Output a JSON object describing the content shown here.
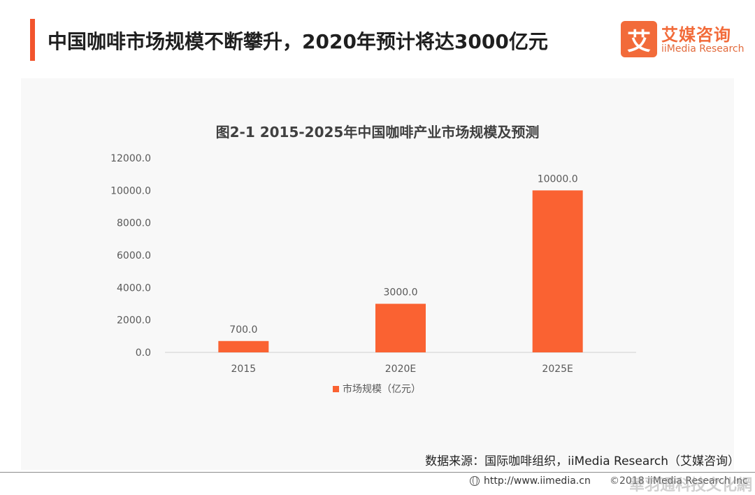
{
  "header": {
    "title": "中国咖啡市场规模不断攀升，2020年预计将达3000亿元"
  },
  "logo": {
    "mark": "艾",
    "name_cn": "艾媒咨询",
    "name_en": "iiMedia Research"
  },
  "chart_data": {
    "type": "bar",
    "title": "图2-1 2015-2025年中国咖啡产业市场规模及预测",
    "categories": [
      "2015",
      "2020E",
      "2025E"
    ],
    "series": [
      {
        "name": "市场规模（亿元）",
        "values": [
          700.0,
          3000.0,
          10000.0
        ],
        "color": "#fa6232"
      }
    ],
    "data_labels": [
      "700.0",
      "3000.0",
      "10000.0"
    ],
    "ylim": [
      0,
      12000
    ],
    "yticks": [
      0,
      2000,
      4000,
      6000,
      8000,
      10000,
      12000
    ],
    "ytick_labels": [
      "0.0",
      "2000.0",
      "4000.0",
      "6000.0",
      "8000.0",
      "10000.0",
      "12000.0"
    ],
    "grid": false,
    "legend_position": "bottom"
  },
  "source": {
    "text": "数据来源：国际咖啡组织，iiMedia Research（艾媒咨询）"
  },
  "footer": {
    "url": "http://www.iimedia.cn",
    "copyright": "©2018  iiMedia Research Inc",
    "watermark": "華羽通科技文化網"
  },
  "colors": {
    "accent": "#f2542d",
    "bar": "#fa6232",
    "axis_text": "#595959"
  },
  "icons": {
    "footer_url_icon": "globe-icon"
  }
}
